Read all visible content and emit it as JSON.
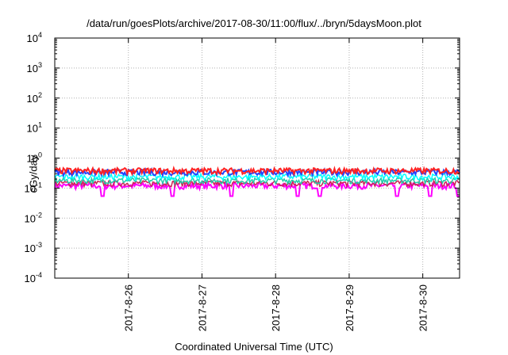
{
  "chart_data": {
    "type": "line",
    "title": "/data/run/goesPlots/archive/2017-08-30/11:00/flux/../bryn/5daysMoon.plot",
    "xlabel": "Coordinated Universal Time (UTC)",
    "ylabel": "cGy/day",
    "yscale": "log",
    "ylim": [
      0.0001,
      10000
    ],
    "y_ticks": [
      {
        "base": "10",
        "exp": "-4"
      },
      {
        "base": "10",
        "exp": "-3"
      },
      {
        "base": "10",
        "exp": "-2"
      },
      {
        "base": "10",
        "exp": "-1"
      },
      {
        "base": "10",
        "exp": "0"
      },
      {
        "base": "10",
        "exp": "1"
      },
      {
        "base": "10",
        "exp": "2"
      },
      {
        "base": "10",
        "exp": "3"
      },
      {
        "base": "10",
        "exp": "4"
      }
    ],
    "x_range_days": [
      "2017-08-25 00:00",
      "2017-08-30 12:00"
    ],
    "x_ticks": [
      "2017-8-26",
      "2017-8-27",
      "2017-8-28",
      "2017-8-29",
      "2017-8-30"
    ],
    "grid": true,
    "series": [
      {
        "color": "#ff00ff",
        "level": 0.12,
        "dips": [
          0.65,
          1.6,
          2.4,
          3.3,
          3.6,
          4.65,
          5.1,
          5.48
        ]
      },
      {
        "color": "#cc2255",
        "level": 0.145
      },
      {
        "color": "#22ccaa",
        "level": 0.18
      },
      {
        "color": "#00ffff",
        "level": 0.24
      },
      {
        "color": "#2244ff",
        "level": 0.34
      },
      {
        "color": "#ff2222",
        "level": 0.38
      }
    ]
  }
}
